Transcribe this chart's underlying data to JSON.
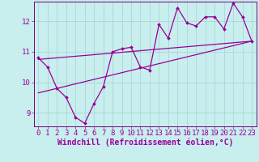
{
  "title": "",
  "xlabel": "Windchill (Refroidissement éolien,°C)",
  "ylabel": "",
  "bg_color": "#c8eeee",
  "grid_color": "#a8d8d8",
  "line_color": "#990099",
  "xlim": [
    -0.5,
    23.5
  ],
  "ylim": [
    8.55,
    12.65
  ],
  "yticks": [
    9,
    10,
    11,
    12
  ],
  "xticks": [
    0,
    1,
    2,
    3,
    4,
    5,
    6,
    7,
    8,
    9,
    10,
    11,
    12,
    13,
    14,
    15,
    16,
    17,
    18,
    19,
    20,
    21,
    22,
    23
  ],
  "data_x": [
    0,
    1,
    2,
    3,
    4,
    5,
    6,
    7,
    8,
    9,
    10,
    11,
    12,
    13,
    14,
    15,
    16,
    17,
    18,
    19,
    20,
    21,
    22,
    23
  ],
  "data_y": [
    10.8,
    10.5,
    9.8,
    9.5,
    8.85,
    8.65,
    9.3,
    9.85,
    11.0,
    11.1,
    11.15,
    10.5,
    10.4,
    11.9,
    11.45,
    12.45,
    11.95,
    11.85,
    12.15,
    12.15,
    11.75,
    12.6,
    12.15,
    11.35
  ],
  "trend1_x": [
    0,
    23
  ],
  "trend1_y": [
    10.75,
    11.35
  ],
  "trend2_x": [
    0,
    23
  ],
  "trend2_y": [
    9.65,
    11.35
  ],
  "tick_fontsize": 6.5,
  "xlabel_fontsize": 7,
  "tick_color": "#990099",
  "marker": "D",
  "marker_size": 2.0,
  "line_width": 0.9,
  "spine_color": "#770077"
}
